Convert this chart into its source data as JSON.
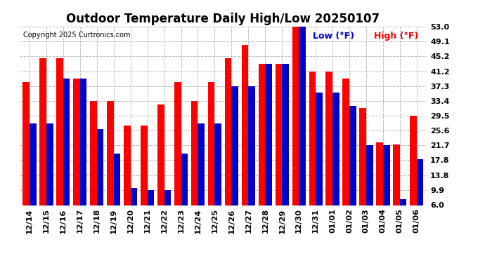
{
  "title": "Outdoor Temperature Daily High/Low 20250107",
  "copyright": "Copyright 2025 Curtronics.com",
  "legend_low": "Low (°F)",
  "legend_high": "High (°F)",
  "categories": [
    "12/14",
    "12/15",
    "12/16",
    "12/17",
    "12/18",
    "12/19",
    "12/20",
    "12/21",
    "12/22",
    "12/23",
    "12/24",
    "12/25",
    "12/26",
    "12/27",
    "12/28",
    "12/29",
    "12/30",
    "12/31",
    "01/01",
    "01/02",
    "01/03",
    "01/04",
    "01/05",
    "01/06"
  ],
  "high_values": [
    38.3,
    44.6,
    44.6,
    39.2,
    33.4,
    33.4,
    27.0,
    27.0,
    32.5,
    38.3,
    33.4,
    38.3,
    44.6,
    48.2,
    43.1,
    43.1,
    53.0,
    41.2,
    41.2,
    39.2,
    31.5,
    22.5,
    22.0,
    29.5
  ],
  "low_values": [
    27.5,
    27.5,
    39.2,
    39.2,
    26.0,
    19.5,
    10.5,
    10.0,
    10.0,
    19.5,
    27.5,
    27.5,
    37.3,
    37.3,
    43.1,
    43.1,
    53.0,
    35.6,
    35.6,
    32.0,
    21.7,
    21.7,
    7.5,
    18.0
  ],
  "high_color": "#ff0000",
  "low_color": "#0000cc",
  "background_color": "#ffffff",
  "grid_color": "#bbbbbb",
  "yticks": [
    6.0,
    9.9,
    13.8,
    17.8,
    21.7,
    25.6,
    29.5,
    33.4,
    37.3,
    41.2,
    45.2,
    49.1,
    53.0
  ],
  "ymin": 6.0,
  "ymax": 53.0,
  "title_fontsize": 12,
  "tick_fontsize": 8
}
